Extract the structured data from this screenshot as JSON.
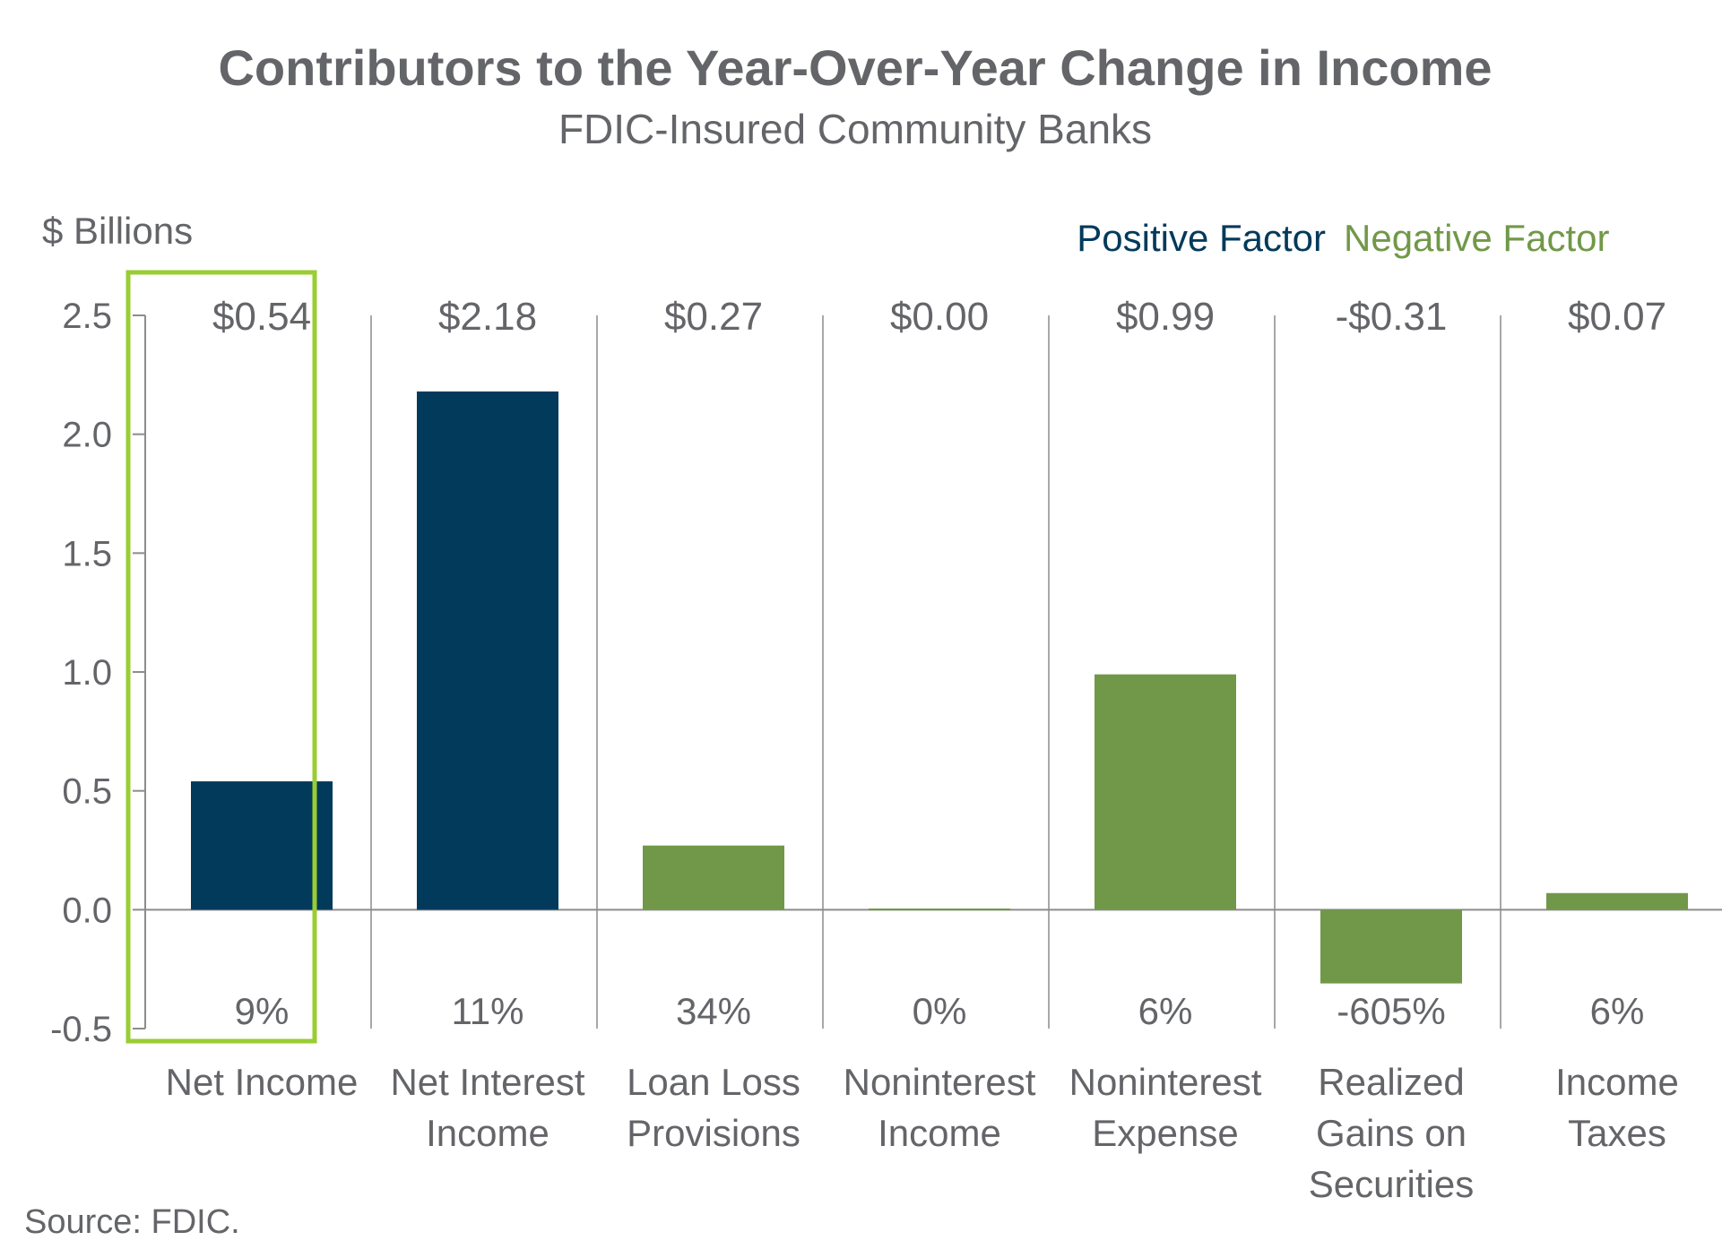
{
  "colors": {
    "positive": "#023a5b",
    "negative": "#719848",
    "text": "#646569",
    "highlight": "#9acd32",
    "axis": "#8c8c8c"
  },
  "source": "Source: FDIC.",
  "chart_data": {
    "type": "bar",
    "title": "Contributors to the Year-Over-Year Change in Income",
    "subtitle": "FDIC-Insured Community Banks",
    "ylabel": "$ Billions",
    "ylim": [
      -0.5,
      2.5
    ],
    "yticks": [
      "2.5",
      "2.0",
      "1.5",
      "1.0",
      "0.5",
      "0.0",
      "-0.5"
    ],
    "ytick_values": [
      2.5,
      2.0,
      1.5,
      1.0,
      0.5,
      0.0,
      -0.5
    ],
    "legend": {
      "position": "top-right",
      "entries": [
        {
          "label": "Positive Factor",
          "color": "#023a5b"
        },
        {
          "label": "Negative Factor",
          "color": "#719848"
        }
      ]
    },
    "categories": [
      [
        "Net Income"
      ],
      [
        "Net Interest",
        "Income"
      ],
      [
        "Loan Loss",
        "Provisions"
      ],
      [
        "Noninterest",
        "Income"
      ],
      [
        "Noninterest",
        "Expense"
      ],
      [
        "Realized",
        "Gains on",
        "Securities"
      ],
      [
        "Income",
        "Taxes"
      ]
    ],
    "values": [
      0.54,
      2.18,
      0.27,
      0.005,
      0.99,
      -0.31,
      0.07
    ],
    "value_labels": [
      "$0.54",
      "$2.18",
      "$0.27",
      "$0.00",
      "$0.99",
      "-$0.31",
      "$0.07"
    ],
    "pct_labels": [
      "9%",
      "11%",
      "34%",
      "0%",
      "6%",
      "-605%",
      "6%"
    ],
    "factor": [
      "positive",
      "positive",
      "negative",
      "negative",
      "negative",
      "negative",
      "negative"
    ],
    "highlighted_category": 0,
    "grid": false
  }
}
